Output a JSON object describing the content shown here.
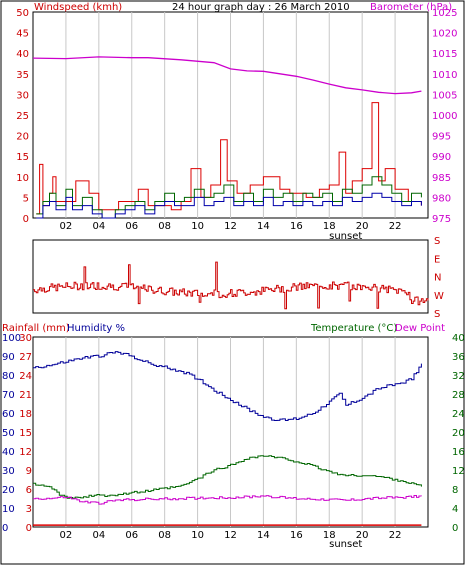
{
  "header": {
    "title": "24 hour graph day : 26 March 2010",
    "left_label": "Windspeed (kmh)",
    "right_label": "Barometer (hPa)"
  },
  "colors": {
    "windspeed": "#cc0000",
    "gust": "#dd0000",
    "wind_avg": "#0000aa",
    "wind_green": "#006600",
    "barometer": "#cc00cc",
    "grid": "#c8c8c8",
    "humidity": "#000099",
    "temperature": "#006600",
    "dewpoint": "#cc00cc",
    "rainfall": "#dd0000",
    "direction": "#cc0000"
  },
  "wind_direction": {
    "labels": [
      "S",
      "E",
      "N",
      "W",
      "S"
    ],
    "ylim": [
      0,
      360
    ]
  },
  "lower": {
    "left_label_rain": "Rainfall (mm)",
    "left_label_humidity": "Humidity %",
    "right_label_temp": "Temperature (°C)",
    "right_label_dew": "Dew Point"
  },
  "chart_data": [
    {
      "type": "line",
      "x_ticks": [
        "02",
        "04",
        "06",
        "08",
        "10",
        "12",
        "14",
        "16",
        "18",
        "20",
        "22"
      ],
      "sunset_label": "sunset",
      "yleft": {
        "ylim": [
          0,
          50
        ],
        "ticks": [
          "0",
          "5",
          "10",
          "15",
          "20",
          "25",
          "30",
          "35",
          "40",
          "45",
          "50"
        ]
      },
      "yright": {
        "ylim": [
          975,
          1025
        ],
        "ticks": [
          "975",
          "980",
          "985",
          "990",
          "995",
          "1000",
          "1005",
          "1010",
          "1015",
          "1020",
          "1025"
        ]
      },
      "series": [
        {
          "key": "gust",
          "points": [
            [
              0.2,
              1
            ],
            [
              0.4,
              13
            ],
            [
              0.6,
              3
            ],
            [
              1.0,
              6
            ],
            [
              1.2,
              10
            ],
            [
              1.4,
              4
            ],
            [
              2.6,
              9
            ],
            [
              3.4,
              6
            ],
            [
              4.0,
              2
            ],
            [
              5.2,
              4
            ],
            [
              6.4,
              7
            ],
            [
              7.0,
              3
            ],
            [
              8.4,
              2
            ],
            [
              9.0,
              4
            ],
            [
              9.6,
              12
            ],
            [
              10.2,
              5
            ],
            [
              10.8,
              8
            ],
            [
              11.4,
              19
            ],
            [
              11.8,
              9
            ],
            [
              12.4,
              6
            ],
            [
              13.2,
              8
            ],
            [
              14.0,
              10
            ],
            [
              15.0,
              7
            ],
            [
              15.6,
              6
            ],
            [
              16.6,
              5
            ],
            [
              17.4,
              7
            ],
            [
              18.0,
              8
            ],
            [
              18.6,
              16
            ],
            [
              19.0,
              6
            ],
            [
              19.4,
              9
            ],
            [
              20.0,
              12
            ],
            [
              20.6,
              28
            ],
            [
              21.0,
              9
            ],
            [
              21.4,
              12
            ],
            [
              22.0,
              7
            ],
            [
              22.8,
              4
            ],
            [
              23.6,
              3
            ]
          ]
        },
        {
          "key": "wind_green",
          "points": [
            [
              0.2,
              1
            ],
            [
              0.6,
              4
            ],
            [
              1.0,
              6
            ],
            [
              1.4,
              3
            ],
            [
              2.0,
              7
            ],
            [
              2.4,
              3
            ],
            [
              3.0,
              5
            ],
            [
              3.6,
              2
            ],
            [
              4.2,
              0
            ],
            [
              5.0,
              2
            ],
            [
              5.6,
              3
            ],
            [
              6.2,
              4
            ],
            [
              6.8,
              2
            ],
            [
              7.4,
              4
            ],
            [
              8.0,
              6
            ],
            [
              8.6,
              4
            ],
            [
              9.2,
              5
            ],
            [
              9.8,
              7
            ],
            [
              10.4,
              5
            ],
            [
              11.0,
              6
            ],
            [
              11.6,
              8
            ],
            [
              12.2,
              4
            ],
            [
              12.8,
              6
            ],
            [
              13.4,
              4
            ],
            [
              14.0,
              7
            ],
            [
              14.6,
              5
            ],
            [
              15.2,
              6
            ],
            [
              15.8,
              4
            ],
            [
              16.4,
              6
            ],
            [
              17.0,
              5
            ],
            [
              17.6,
              6
            ],
            [
              18.2,
              4
            ],
            [
              18.8,
              7
            ],
            [
              19.4,
              6
            ],
            [
              20.0,
              8
            ],
            [
              20.6,
              10
            ],
            [
              21.2,
              8
            ],
            [
              21.8,
              6
            ],
            [
              22.4,
              4
            ],
            [
              23.0,
              6
            ],
            [
              23.6,
              5
            ]
          ]
        },
        {
          "key": "wind_avg",
          "points": [
            [
              0.2,
              0
            ],
            [
              0.6,
              3
            ],
            [
              1.0,
              4
            ],
            [
              1.4,
              2
            ],
            [
              2.0,
              5
            ],
            [
              2.4,
              2
            ],
            [
              3.0,
              3
            ],
            [
              3.6,
              1
            ],
            [
              4.2,
              0
            ],
            [
              5.0,
              1
            ],
            [
              5.6,
              2
            ],
            [
              6.2,
              3
            ],
            [
              6.8,
              1
            ],
            [
              7.4,
              3
            ],
            [
              8.0,
              4
            ],
            [
              8.6,
              3
            ],
            [
              9.2,
              3
            ],
            [
              9.8,
              5
            ],
            [
              10.4,
              3
            ],
            [
              11.0,
              4
            ],
            [
              11.6,
              5
            ],
            [
              12.2,
              3
            ],
            [
              12.8,
              4
            ],
            [
              13.4,
              3
            ],
            [
              14.0,
              5
            ],
            [
              14.6,
              3
            ],
            [
              15.2,
              4
            ],
            [
              15.8,
              3
            ],
            [
              16.4,
              4
            ],
            [
              17.0,
              3
            ],
            [
              17.6,
              4
            ],
            [
              18.2,
              3
            ],
            [
              18.8,
              5
            ],
            [
              19.4,
              4
            ],
            [
              20.0,
              5
            ],
            [
              20.6,
              6
            ],
            [
              21.2,
              5
            ],
            [
              21.8,
              4
            ],
            [
              22.4,
              3
            ],
            [
              23.0,
              4
            ],
            [
              23.6,
              3
            ]
          ]
        },
        {
          "key": "barometer",
          "points": [
            [
              0,
              1013.8
            ],
            [
              2,
              1013.7
            ],
            [
              4,
              1014.1
            ],
            [
              6,
              1013.9
            ],
            [
              7,
              1013.9
            ],
            [
              9,
              1013.4
            ],
            [
              11,
              1012.7
            ],
            [
              12,
              1011.2
            ],
            [
              13,
              1010.7
            ],
            [
              14,
              1010.6
            ],
            [
              15,
              1010.0
            ],
            [
              16,
              1009.4
            ],
            [
              17,
              1008.5
            ],
            [
              18,
              1007.5
            ],
            [
              19,
              1006.6
            ],
            [
              20,
              1006.1
            ],
            [
              21,
              1005.5
            ],
            [
              22,
              1005.2
            ],
            [
              23,
              1005.4
            ],
            [
              23.6,
              1005.8
            ]
          ]
        }
      ]
    },
    {
      "type": "line",
      "x_ticks": [
        "02",
        "04",
        "06",
        "08",
        "10",
        "12",
        "14",
        "16",
        "18",
        "20",
        "22"
      ],
      "sunset_label": "sunset",
      "y_rain": {
        "ylim": [
          0,
          30
        ],
        "ticks": [
          "0",
          "3",
          "6",
          "9",
          "12",
          "15",
          "18",
          "21",
          "24",
          "27",
          "30"
        ]
      },
      "y_humidity": {
        "ylim": [
          0,
          100
        ],
        "ticks": [
          "0",
          "10",
          "20",
          "30",
          "40",
          "50",
          "60",
          "70",
          "80",
          "90",
          "100"
        ]
      },
      "y_temp": {
        "ylim": [
          0,
          40
        ],
        "ticks": [
          "0",
          "4",
          "8",
          "12",
          "16",
          "20",
          "24",
          "28",
          "32",
          "36",
          "40"
        ]
      },
      "series": [
        {
          "key": "humidity",
          "points": [
            [
              0,
              84
            ],
            [
              1,
              85
            ],
            [
              2,
              87
            ],
            [
              3,
              89
            ],
            [
              4,
              90
            ],
            [
              5,
              92
            ],
            [
              6,
              90
            ],
            [
              7,
              86
            ],
            [
              8,
              84
            ],
            [
              9,
              82
            ],
            [
              10,
              78
            ],
            [
              11,
              72
            ],
            [
              12,
              67
            ],
            [
              13,
              62
            ],
            [
              14,
              58
            ],
            [
              15,
              56
            ],
            [
              16,
              57
            ],
            [
              17,
              60
            ],
            [
              18,
              66
            ],
            [
              18.6,
              70
            ],
            [
              19,
              64
            ],
            [
              20,
              68
            ],
            [
              21,
              73
            ],
            [
              22,
              75
            ],
            [
              23,
              78
            ],
            [
              23.6,
              86
            ]
          ]
        },
        {
          "key": "temperature",
          "points": [
            [
              0,
              9.0
            ],
            [
              1,
              8.7
            ],
            [
              1.6,
              6.6
            ],
            [
              2.4,
              6.0
            ],
            [
              3.4,
              6.5
            ],
            [
              5,
              6.8
            ],
            [
              7,
              7.6
            ],
            [
              9,
              8.6
            ],
            [
              10,
              10.2
            ],
            [
              11,
              12.0
            ],
            [
              12,
              13.0
            ],
            [
              13,
              14.5
            ],
            [
              14,
              15.0
            ],
            [
              15,
              14.5
            ],
            [
              16,
              13.8
            ],
            [
              17,
              12.8
            ],
            [
              18,
              11.6
            ],
            [
              19,
              10.8
            ],
            [
              20,
              10.9
            ],
            [
              21,
              10.6
            ],
            [
              22,
              10.0
            ],
            [
              23,
              9.2
            ],
            [
              23.6,
              8.5
            ]
          ]
        },
        {
          "key": "dewpoint",
          "points": [
            [
              0,
              6.0
            ],
            [
              1,
              6.0
            ],
            [
              2,
              6.3
            ],
            [
              3,
              5.3
            ],
            [
              4,
              5.0
            ],
            [
              5,
              5.6
            ],
            [
              6,
              5.8
            ],
            [
              8,
              5.9
            ],
            [
              10,
              6.1
            ],
            [
              12,
              6.2
            ],
            [
              13,
              6.3
            ],
            [
              14,
              6.6
            ],
            [
              15,
              6.2
            ],
            [
              16,
              6.0
            ],
            [
              18,
              5.8
            ],
            [
              19,
              5.6
            ],
            [
              20,
              5.9
            ],
            [
              21,
              6.1
            ],
            [
              22,
              6.2
            ],
            [
              23,
              6.4
            ],
            [
              23.6,
              6.5
            ]
          ]
        },
        {
          "key": "rainfall",
          "points": [
            [
              0,
              0.3
            ],
            [
              23.6,
              0.3
            ]
          ]
        }
      ]
    }
  ]
}
